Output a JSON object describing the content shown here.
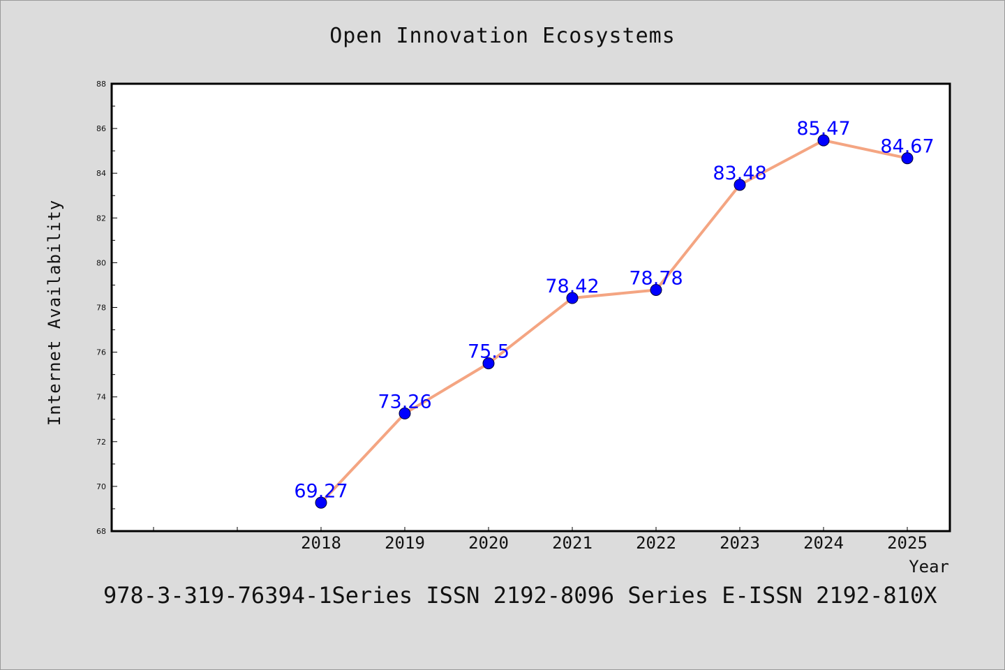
{
  "chart_data": {
    "type": "line",
    "title": "Open Innovation Ecosystems",
    "xlabel": "Year",
    "ylabel": "Internet Availability",
    "categories": [
      "2018",
      "2019",
      "2020",
      "2021",
      "2022",
      "2023",
      "2024",
      "2025"
    ],
    "series": [
      {
        "values": [
          69.27,
          73.26,
          75.5,
          78.42,
          78.78,
          83.48,
          85.47,
          84.67
        ],
        "line_color": "#f4a582",
        "marker_color": "#0000ff"
      }
    ],
    "data_labels": [
      "69.27",
      "73.26",
      "75.5",
      "78.42",
      "78.78",
      "83.48",
      "85.47",
      "84.67"
    ],
    "yticks": [
      "68",
      "70",
      "72",
      "74",
      "76",
      "78",
      "80",
      "82",
      "84",
      "86",
      "88"
    ],
    "ylim": [
      68,
      88
    ],
    "grid": false,
    "legend": "none",
    "label_color": "#0000ff"
  },
  "footer": {
    "text": "978-3-319-76394-1Series ISSN 2192-8096 Series E-ISSN 2192-810X"
  }
}
